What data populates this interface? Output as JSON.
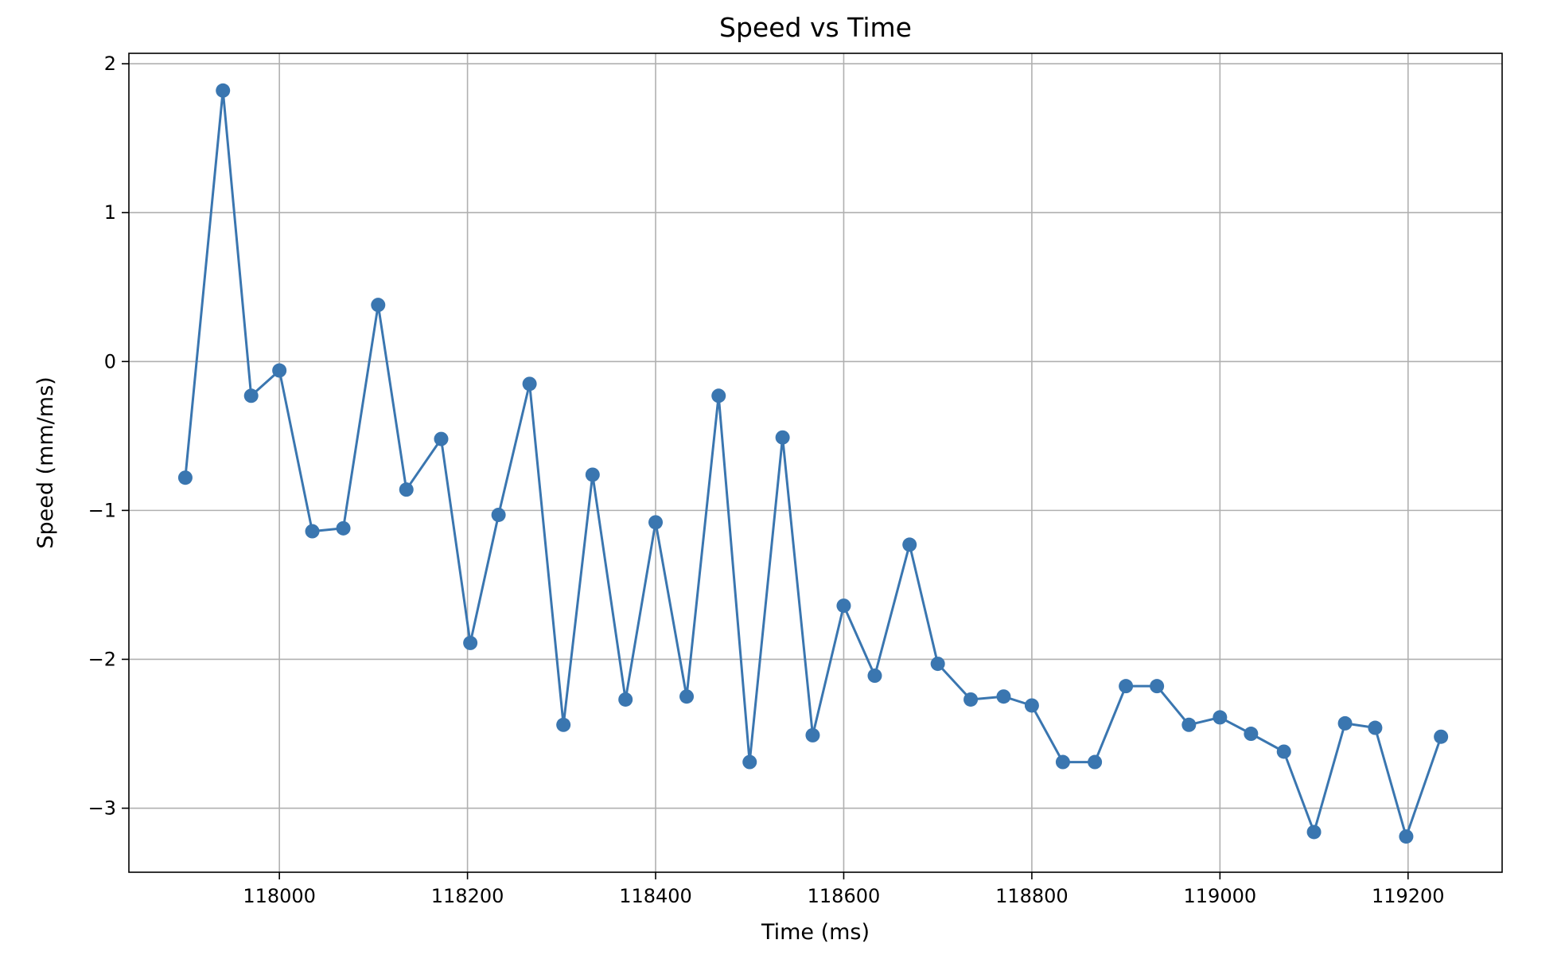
{
  "chart_data": {
    "type": "line",
    "title": "Speed vs Time",
    "xlabel": "Time (ms)",
    "ylabel": "Speed (mm/ms)",
    "xlim": [
      117840,
      119300
    ],
    "ylim": [
      -3.43,
      2.07
    ],
    "grid": true,
    "legend": "none",
    "x_ticks": [
      {
        "value": 118000,
        "label": "118000"
      },
      {
        "value": 118200,
        "label": "118200"
      },
      {
        "value": 118400,
        "label": "118400"
      },
      {
        "value": 118600,
        "label": "118600"
      },
      {
        "value": 118800,
        "label": "118800"
      },
      {
        "value": 119000,
        "label": "119000"
      },
      {
        "value": 119200,
        "label": "119200"
      }
    ],
    "y_ticks": [
      {
        "value": 2,
        "label": "2"
      },
      {
        "value": 1,
        "label": "1"
      },
      {
        "value": 0,
        "label": "0"
      },
      {
        "value": -1,
        "label": "−1"
      },
      {
        "value": -2,
        "label": "−2"
      },
      {
        "value": -3,
        "label": "−3"
      }
    ],
    "series": [
      {
        "color": "#3a76b0",
        "x": [
          117900,
          117940,
          117970,
          118000,
          118035,
          118068,
          118105,
          118135,
          118172,
          118203,
          118233,
          118266,
          118302,
          118333,
          118368,
          118400,
          118433,
          118467,
          118500,
          118535,
          118567,
          118600,
          118633,
          118670,
          118700,
          118735,
          118770,
          118800,
          118833,
          118867,
          118900,
          118933,
          118967,
          119000,
          119033,
          119068,
          119100,
          119133,
          119165,
          119198,
          119235
        ],
        "y": [
          -0.78,
          1.82,
          -0.23,
          -0.06,
          -1.14,
          -1.12,
          0.38,
          -0.86,
          -0.52,
          -1.89,
          -1.03,
          -0.15,
          -2.44,
          -0.76,
          -2.27,
          -1.08,
          -2.25,
          -0.23,
          -2.69,
          -0.51,
          -2.51,
          -1.64,
          -2.11,
          -1.23,
          -2.03,
          -2.27,
          -2.25,
          -2.31,
          -2.69,
          -2.69,
          -2.18,
          -2.18,
          -2.44,
          -2.39,
          -2.5,
          -2.62,
          -3.16,
          -2.43,
          -2.46,
          -3.19,
          -2.52
        ]
      }
    ]
  }
}
